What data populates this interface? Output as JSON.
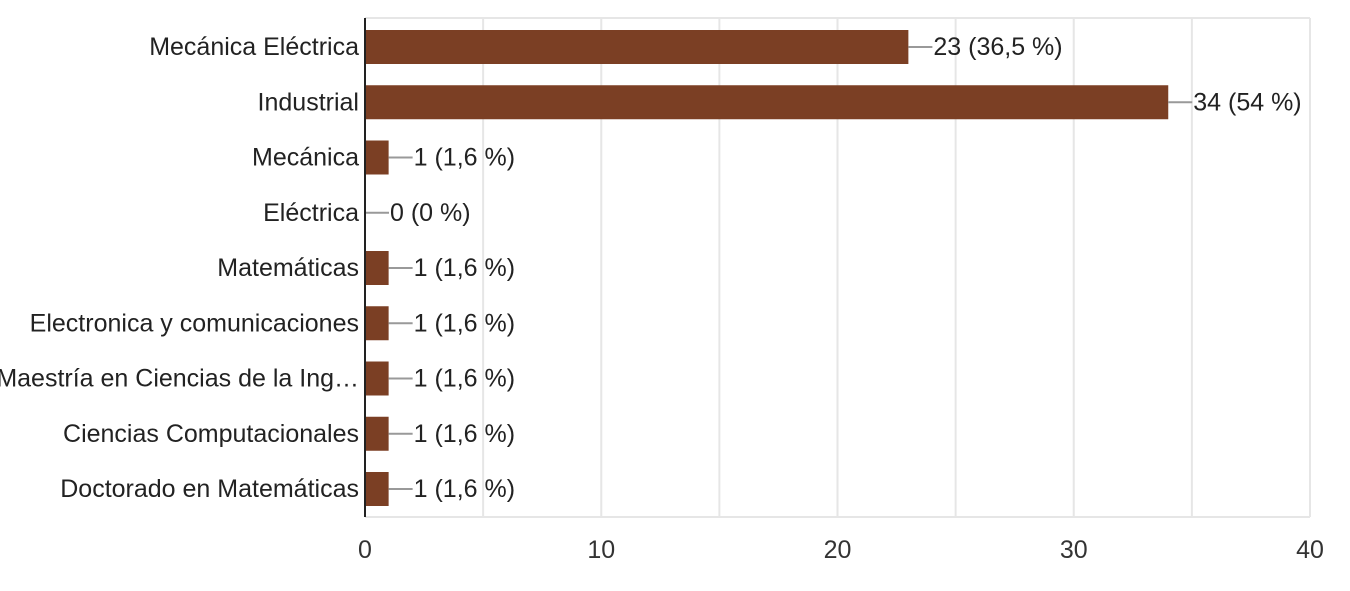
{
  "chart_data": {
    "type": "bar",
    "orientation": "horizontal",
    "categories": [
      "Mecánica Eléctrica",
      "Industrial",
      "Mecánica",
      "Eléctrica",
      "Matemáticas",
      "Electronica y comunicaciones",
      "Maestría en Ciencias de la Ing…",
      "Ciencias Computacionales",
      "Doctorado en Matemáticas"
    ],
    "values": [
      23,
      34,
      1,
      0,
      1,
      1,
      1,
      1,
      1
    ],
    "data_labels": [
      "23 (36,5 %)",
      "34 (54 %)",
      "1 (1,6 %)",
      "0 (0 %)",
      "1 (1,6 %)",
      "1 (1,6 %)",
      "1 (1,6 %)",
      "1 (1,6 %)",
      "1 (1,6 %)"
    ],
    "xlim": [
      0,
      40
    ],
    "xticks": [
      "0",
      "10",
      "20",
      "30",
      "40"
    ],
    "grid": true,
    "legend": "none",
    "title": "",
    "xlabel": "",
    "ylabel": "",
    "bar_color": "#7b3f24"
  }
}
